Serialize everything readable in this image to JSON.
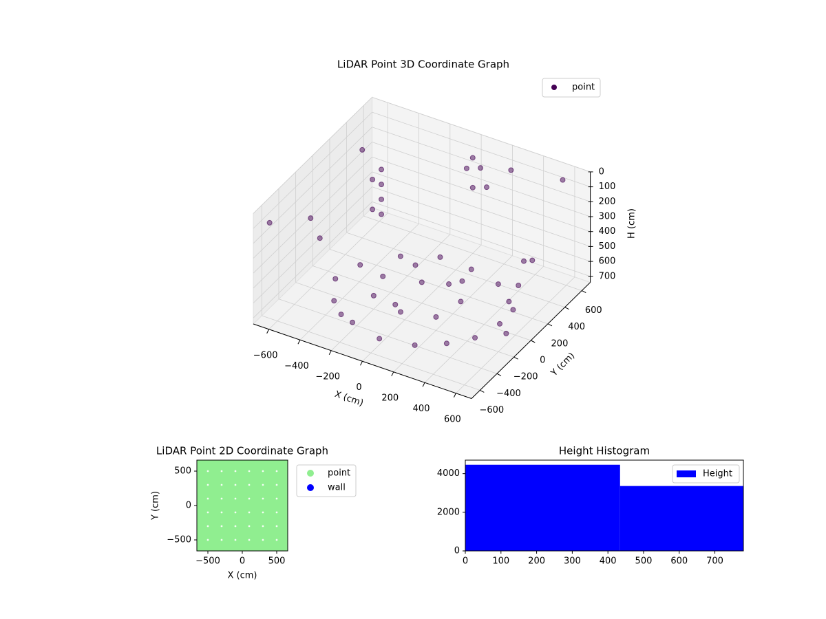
{
  "chart_data": [
    {
      "type": "scatter3d",
      "title": "LiDAR Point 3D Coordinate Graph",
      "xlabel": "X (cm)",
      "ylabel": "Y (cm)",
      "zlabel": "H (cm)",
      "xlim": [
        -700,
        700
      ],
      "ylim": [
        -700,
        700
      ],
      "zlim": [
        0,
        740
      ],
      "z_inverted": true,
      "xticks": [
        {
          "value": -600,
          "label": "−600"
        },
        {
          "value": -400,
          "label": "−400"
        },
        {
          "value": -200,
          "label": "−200"
        },
        0,
        200,
        400,
        600
      ],
      "yticks": [
        {
          "value": -600,
          "label": "−600"
        },
        {
          "value": -400,
          "label": "−400"
        },
        {
          "value": -200,
          "label": "−200"
        },
        0,
        200,
        400,
        600
      ],
      "zticks": [
        0,
        100,
        200,
        300,
        400,
        500,
        600,
        700
      ],
      "grid": true,
      "legend": "upper right",
      "series": [
        {
          "name": "point",
          "color": "#440154",
          "x": [
            -400,
            -300,
            -200,
            0,
            200,
            350,
            450,
            500,
            450,
            300,
            100,
            -100,
            -300,
            -450,
            -500,
            -200,
            0,
            200,
            250,
            150,
            -150,
            -250,
            0,
            -450,
            -450,
            -450,
            -450,
            -480,
            -480,
            0,
            50,
            -50,
            100,
            0,
            600,
            620,
            640,
            600,
            650,
            -650,
            -300,
            300,
            500,
            -600,
            200,
            550,
            -550
          ],
          "y": [
            -300,
            -400,
            -450,
            -500,
            -450,
            -350,
            -200,
            0,
            200,
            350,
            400,
            400,
            300,
            100,
            -100,
            -200,
            -250,
            -200,
            0,
            200,
            200,
            0,
            0,
            350,
            350,
            350,
            350,
            300,
            300,
            600,
            600,
            620,
            580,
            600,
            100,
            0,
            -100,
            200,
            -200,
            -600,
            -650,
            500,
            -600,
            400,
            -680,
            650,
            -300
          ],
          "z": [
            700,
            700,
            690,
            700,
            700,
            690,
            700,
            700,
            680,
            700,
            700,
            690,
            700,
            700,
            700,
            650,
            660,
            650,
            640,
            650,
            650,
            650,
            600,
            200,
            300,
            400,
            500,
            250,
            450,
            100,
            150,
            200,
            250,
            300,
            300,
            400,
            500,
            350,
            600,
            100,
            50,
            20,
            100,
            150,
            300,
            80,
            200
          ]
        }
      ]
    },
    {
      "type": "scatter",
      "title": "LiDAR Point 2D Coordinate Graph",
      "xlabel": "X (cm)",
      "ylabel": "Y (cm)",
      "xlim": [
        -660,
        660
      ],
      "ylim": [
        -660,
        660
      ],
      "xticks": [
        {
          "value": -500,
          "label": "−500"
        },
        0,
        500
      ],
      "yticks": [
        {
          "value": -500,
          "label": "−500"
        },
        0,
        500
      ],
      "legend": "outside upper right",
      "series": [
        {
          "name": "point",
          "color": "#90ee90",
          "x": [
            -600,
            -400,
            -200,
            0,
            200,
            400,
            600,
            -600,
            -400,
            -200,
            0,
            200,
            400,
            600,
            -600,
            -400,
            -200,
            0,
            200,
            400,
            600,
            -600,
            -400,
            -200,
            0,
            200,
            400,
            600,
            -600,
            -400,
            -200,
            0,
            200,
            400,
            600,
            -600,
            -400,
            -200,
            0,
            200,
            400,
            600,
            -600,
            -400,
            -200,
            0,
            200,
            400,
            600
          ],
          "y": [
            -600,
            -600,
            -600,
            -600,
            -600,
            -600,
            -600,
            -400,
            -400,
            -400,
            -400,
            -400,
            -400,
            -400,
            -200,
            -200,
            -200,
            -200,
            -200,
            -200,
            -200,
            0,
            0,
            0,
            0,
            0,
            0,
            0,
            200,
            200,
            200,
            200,
            200,
            200,
            200,
            400,
            400,
            400,
            400,
            400,
            400,
            400,
            600,
            600,
            600,
            600,
            600,
            600,
            600
          ]
        },
        {
          "name": "wall",
          "color": "#0000ff",
          "x": [],
          "y": []
        }
      ]
    },
    {
      "type": "histogram",
      "title": "Height Histogram",
      "xlim": [
        0,
        780
      ],
      "ylim": [
        0,
        4700
      ],
      "xticks": [
        0,
        100,
        200,
        300,
        400,
        500,
        600,
        700
      ],
      "yticks": [
        0,
        2000,
        4000
      ],
      "legend": "upper right",
      "bins": [
        0,
        434,
        780
      ],
      "series": [
        {
          "name": "Height",
          "color": "#0000ff",
          "values": [
            4460,
            3360
          ]
        }
      ]
    }
  ]
}
